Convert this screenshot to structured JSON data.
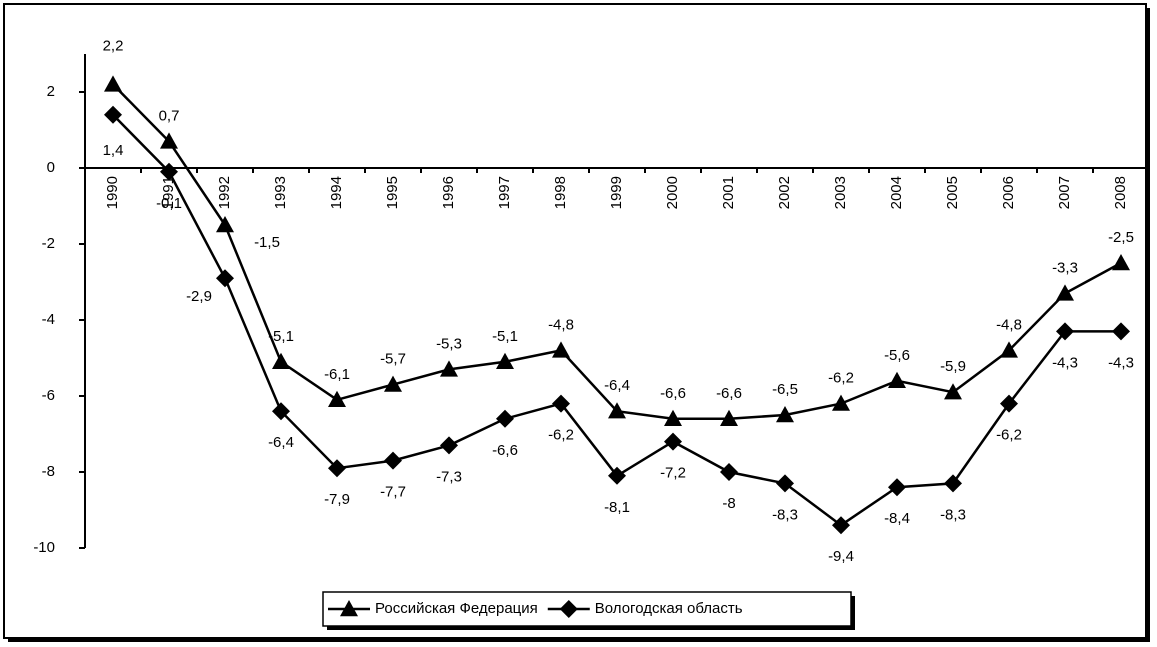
{
  "chart_data": {
    "type": "line",
    "categories": [
      "1990",
      "1991",
      "1992",
      "1993",
      "1994",
      "1995",
      "1996",
      "1997",
      "1998",
      "1999",
      "2000",
      "2001",
      "2002",
      "2003",
      "2004",
      "2005",
      "2006",
      "2007",
      "2008"
    ],
    "series": [
      {
        "name": "Российская Федерация",
        "color": "#000000",
        "marker": "triangle",
        "values": [
          2.2,
          0.7,
          -1.5,
          -5.1,
          -6.1,
          -5.7,
          -5.3,
          -5.1,
          -4.8,
          -6.4,
          -6.6,
          -6.6,
          -6.5,
          -6.2,
          -5.6,
          -5.9,
          -4.8,
          -3.3,
          -2.5
        ],
        "value_labels": [
          "2,2",
          "0,7",
          "-1,5",
          "-5,1",
          "-6,1",
          "-5,7",
          "-5,3",
          "-5,1",
          "-4,8",
          "-6,4",
          "-6,6",
          "-6,6",
          "-6,5",
          "-6,2",
          "-5,6",
          "-5,9",
          "-4,8",
          "-3,3",
          "-2,5"
        ]
      },
      {
        "name": "Вологодская область",
        "color": "#000000",
        "marker": "diamond",
        "values": [
          1.4,
          -0.1,
          -2.9,
          -6.4,
          -7.9,
          -7.7,
          -7.3,
          -6.6,
          -6.2,
          -8.1,
          -7.2,
          -8,
          -8.3,
          -9.4,
          -8.4,
          -8.3,
          -6.2,
          -4.3,
          -4.3
        ],
        "value_labels": [
          "1,4",
          "-0,1",
          "-2,9",
          "-6,4",
          "-7,9",
          "-7,7",
          "-7,3",
          "-6,6",
          "-6,2",
          "-8,1",
          "-7,2",
          "-8",
          "-8,3",
          "-9,4",
          "-8,4",
          "-8,3",
          "-6,2",
          "-4,3",
          "-4,3"
        ]
      }
    ],
    "ylim": [
      -10,
      3
    ],
    "yticks": [
      2,
      0,
      -2,
      -4,
      -6,
      -8,
      -10
    ],
    "grid": false,
    "legend": "bottom"
  }
}
